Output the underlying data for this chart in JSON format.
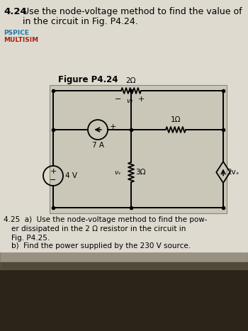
{
  "title_num": "4.24",
  "title_text": "Use the node-voltage method to find the value of",
  "title_text2": "in the circuit in Fig. P4.24.",
  "pspice_label": "PSPICE",
  "multisim_label": "MULTISIM",
  "fig_label": "Figure P4.24",
  "bg_color": "#dedad0",
  "circuit_bg": "#cac6b8",
  "text_color": "#111111",
  "problem425_a": "4.25  a)  Use the node-voltage method to find the pow-",
  "problem425_b": "er dissipated in the 2 Ω resistor in the circuit in",
  "problem425_c": "Fig. P4.25.",
  "problem425_d": "b)  Find the power supplied by the 230 V source.",
  "resistor_2": "2Ω",
  "resistor_1": "1Ω",
  "resistor_3": "3Ω",
  "source_7A": "7 A",
  "source_4V": "4 V",
  "dep_source": "2vₓ",
  "voltage_vx": "vₓ",
  "voltage_v2": "v₂",
  "plus_sign": "+",
  "minus_sign": "−",
  "pspice_color": "#1a7aaa",
  "multisim_color": "#aa2211",
  "bottom_dark": "#3a3020"
}
